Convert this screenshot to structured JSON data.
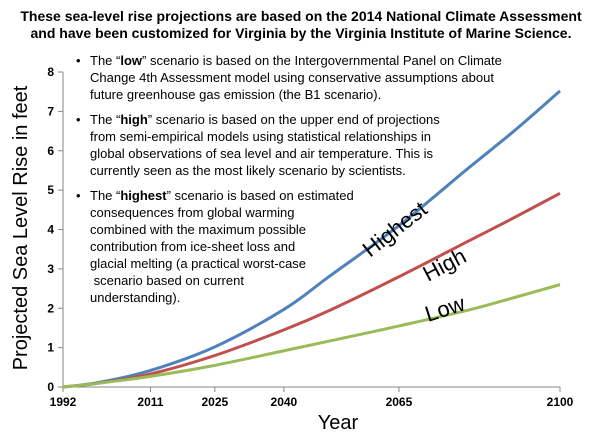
{
  "chart_data": {
    "type": "line",
    "title": [
      "These sea-level rise projections are based on the 2014 National Climate Assessment",
      "and have been customized for Virginia by the Virginia Institute of Marine Science."
    ],
    "xlabel": "Year",
    "ylabel": "Projected Sea Level Rise in feet",
    "xlim": [
      1992,
      2100
    ],
    "ylim": [
      0,
      8
    ],
    "xticks": [
      1992,
      2011,
      2025,
      2040,
      2065,
      2100
    ],
    "yticks": [
      0,
      1,
      2,
      3,
      4,
      5,
      6,
      7,
      8
    ],
    "grid": false,
    "series": [
      {
        "name": "Highest",
        "color": "#4f81bd",
        "x": [
          1992,
          2000,
          2011,
          2025,
          2040,
          2050,
          2065,
          2080,
          2090,
          2100
        ],
        "y": [
          0,
          0.12,
          0.42,
          1.02,
          1.97,
          2.82,
          4.1,
          5.55,
          6.5,
          7.52
        ]
      },
      {
        "name": "High",
        "color": "#c0504d",
        "x": [
          1992,
          2000,
          2011,
          2025,
          2040,
          2050,
          2065,
          2080,
          2090,
          2100
        ],
        "y": [
          0,
          0.1,
          0.33,
          0.8,
          1.45,
          1.95,
          2.8,
          3.7,
          4.3,
          4.92
        ]
      },
      {
        "name": "Low",
        "color": "#9bbb59",
        "x": [
          1992,
          2000,
          2011,
          2025,
          2040,
          2050,
          2065,
          2080,
          2090,
          2100
        ],
        "y": [
          0,
          0.1,
          0.27,
          0.55,
          0.92,
          1.17,
          1.55,
          1.95,
          2.27,
          2.6
        ]
      }
    ]
  },
  "notes": [
    {
      "bullet": "•",
      "lines": [
        [
          {
            "t": "The “"
          },
          {
            "t": "low",
            "b": true
          },
          {
            "t": "” scenario is based on the Intergovernmental Panel on Climate"
          }
        ],
        [
          {
            "t": "Change 4th Assessment model using conservative assumptions about"
          }
        ],
        [
          {
            "t": "future greenhouse gas emission (the B1 scenario)."
          }
        ]
      ]
    },
    {
      "bullet": "•",
      "lines": [
        [
          {
            "t": "The “"
          },
          {
            "t": "high",
            "b": true
          },
          {
            "t": "” scenario is based on the upper end of projections"
          }
        ],
        [
          {
            "t": "from semi-empirical models using statistical relationships in"
          }
        ],
        [
          {
            "t": "global observations of sea level and air temperature. This is"
          }
        ],
        [
          {
            "t": "currently seen as the most likely scenario by scientists."
          }
        ]
      ]
    },
    {
      "bullet": "•",
      "lines": [
        [
          {
            "t": "The “"
          },
          {
            "t": "highest",
            "b": true
          },
          {
            "t": "” scenario is based on estimated"
          }
        ],
        [
          {
            "t": "consequences from global warming"
          }
        ],
        [
          {
            "t": "combined with the maximum possible"
          }
        ],
        [
          {
            "t": "contribution from ice-sheet loss and"
          }
        ],
        [
          {
            "t": "glacial melting (a practical worst-case"
          }
        ],
        [
          {
            "t": " scenario based on current"
          }
        ],
        [
          {
            "t": "understanding)."
          }
        ]
      ]
    }
  ]
}
